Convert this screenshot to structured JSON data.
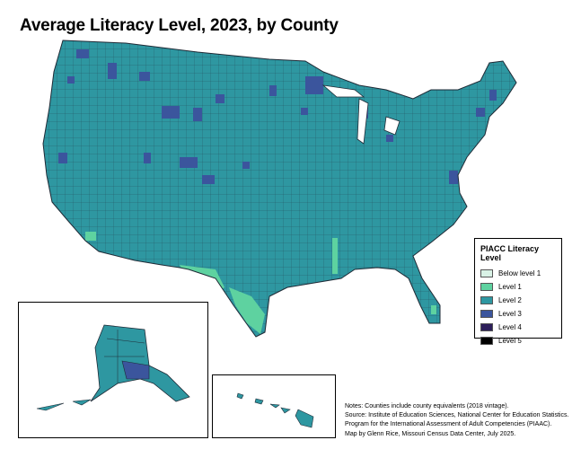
{
  "title": "Average Literacy Level, 2023, by County",
  "legend": {
    "title": "PIACC Literacy Level",
    "items": [
      {
        "label": "Below level 1",
        "color": "#d9f2e6"
      },
      {
        "label": "Level 1",
        "color": "#5ed2a0"
      },
      {
        "label": "Level 2",
        "color": "#2e97a1"
      },
      {
        "label": "Level 3",
        "color": "#3b559d"
      },
      {
        "label": "Level 4",
        "color": "#2d1f5a"
      },
      {
        "label": "Level 5",
        "color": "#000000"
      }
    ]
  },
  "notes": [
    "Notes: Counties include county equivalents (2018 vintage).",
    "Source: Institute of Education Sciences, National Center for Education Statistics.",
    "Program for the International Assessment of Adult Competencies (PIAAC).",
    "Map by Glenn Rice, Missouri Census Data Center, July 2025."
  ],
  "colors": {
    "dominant": "#2e97a1",
    "border": "#1f2a36"
  }
}
